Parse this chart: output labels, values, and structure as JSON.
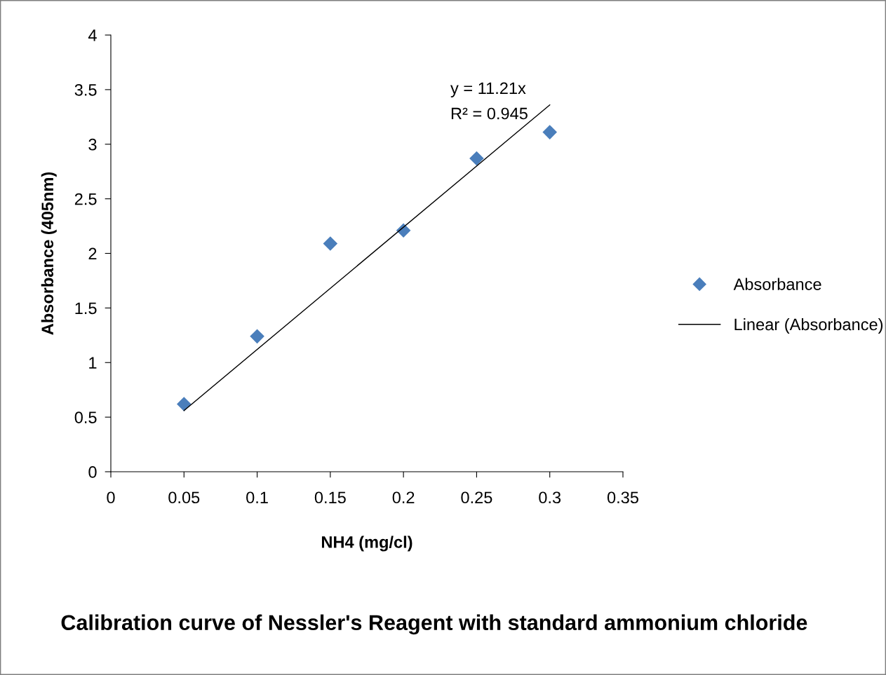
{
  "chart_data": {
    "type": "scatter",
    "title": "Calibration curve of Nessler's Reagent with standard ammonium chloride",
    "xlabel": "NH4 (mg/cl)",
    "ylabel": "Absorbance (405nm)",
    "x": [
      0.05,
      0.1,
      0.15,
      0.2,
      0.25,
      0.3
    ],
    "series": [
      {
        "name": "Absorbance",
        "color": "#4a7ebb",
        "marker": "diamond",
        "values": [
          0.62,
          1.24,
          2.09,
          2.21,
          2.87,
          3.11
        ]
      },
      {
        "name": "Linear (Absorbance)",
        "type": "line",
        "color": "#000000",
        "x": [
          0.05,
          0.3
        ],
        "values": [
          0.56,
          3.36
        ],
        "marker": "none",
        "line_style": "solid"
      }
    ],
    "annotations": [
      "y = 11.21x",
      "R² = 0.945"
    ],
    "xlim": [
      0,
      0.35
    ],
    "xticks": [
      0,
      0.05,
      0.1,
      0.15,
      0.2,
      0.25,
      0.3,
      0.35
    ],
    "ylim": [
      0,
      4
    ],
    "yticks": [
      0,
      0.5,
      1,
      1.5,
      2,
      2.5,
      3,
      3.5,
      4
    ],
    "grid": false,
    "legend": "right"
  }
}
